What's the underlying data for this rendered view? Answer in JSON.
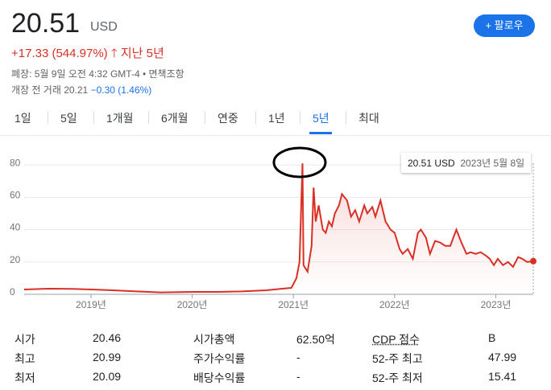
{
  "header": {
    "price": "20.51",
    "currency": "USD",
    "change": "+17.33 (544.97%)",
    "period": "지난 5년",
    "closed": "폐장: 5월 9일 오전 4:32 GMT-4 • 면책조항",
    "premarket_label": "개장 전 거래 20.21",
    "premarket_change": "−0.30 (1.46%)",
    "follow": "팔로우"
  },
  "tabs": [
    "1일",
    "5일",
    "1개월",
    "6개월",
    "연중",
    "1년",
    "5년",
    "최대"
  ],
  "chart_data": {
    "type": "line",
    "color": "#d93025",
    "tooltip": {
      "price": "20.51 USD",
      "date": "2023년 5월 8일"
    },
    "x": [
      2018.34,
      2018.58,
      2018.82,
      2019.0,
      2019.22,
      2019.45,
      2019.69,
      2020.0,
      2020.25,
      2020.49,
      2020.73,
      2020.89,
      2020.98,
      2021.03,
      2021.06,
      2021.09,
      2021.1,
      2021.14,
      2021.18,
      2021.2,
      2021.22,
      2021.25,
      2021.29,
      2021.32,
      2021.35,
      2021.38,
      2021.41,
      2021.45,
      2021.48,
      2021.53,
      2021.57,
      2021.61,
      2021.65,
      2021.7,
      2021.73,
      2021.78,
      2021.81,
      2021.86,
      2021.91,
      2021.96,
      2022.0,
      2022.05,
      2022.08,
      2022.13,
      2022.18,
      2022.23,
      2022.26,
      2022.31,
      2022.35,
      2022.4,
      2022.45,
      2022.5,
      2022.55,
      2022.61,
      2022.66,
      2022.71,
      2022.75,
      2022.8,
      2022.85,
      2022.9,
      2022.94,
      2022.98,
      2023.02,
      2023.07,
      2023.12,
      2023.17,
      2023.22,
      2023.26,
      2023.31,
      2023.37
    ],
    "values": [
      3,
      3.5,
      3.4,
      3,
      2.5,
      1.8,
      1.2,
      1.5,
      1.5,
      1.8,
      2.5,
      3.5,
      4,
      10,
      20,
      81,
      18,
      14,
      30,
      66,
      45,
      55,
      40,
      38,
      45,
      42,
      50,
      55,
      62,
      58,
      48,
      52,
      45,
      55,
      50,
      54,
      48,
      58,
      45,
      40,
      38,
      28,
      25,
      28,
      22,
      38,
      40,
      35,
      25,
      33,
      32,
      30,
      30,
      40,
      32,
      25,
      26,
      25,
      26,
      24,
      22,
      18,
      22,
      18,
      20,
      17,
      23,
      22,
      20,
      20.51
    ],
    "xlim": [
      2018.34,
      2023.37
    ],
    "xticks": [
      {
        "value": 2019,
        "label": "2019년"
      },
      {
        "value": 2020,
        "label": "2020년"
      },
      {
        "value": 2021,
        "label": "2021년"
      },
      {
        "value": 2022,
        "label": "2022년"
      },
      {
        "value": 2023,
        "label": "2023년"
      }
    ],
    "ylim": [
      0,
      88
    ],
    "yticks": [
      0,
      20,
      40,
      60,
      80
    ],
    "grid": true
  },
  "stats": {
    "rows": [
      [
        "시가",
        "20.46",
        "시가총액",
        "62.50억",
        "CDP 점수",
        "B"
      ],
      [
        "최고",
        "20.99",
        "주가수익률",
        "-",
        "52-주 최고",
        "47.99"
      ],
      [
        "최저",
        "20.09",
        "배당수익률",
        "-",
        "52-주 최저",
        "15.41"
      ]
    ]
  }
}
